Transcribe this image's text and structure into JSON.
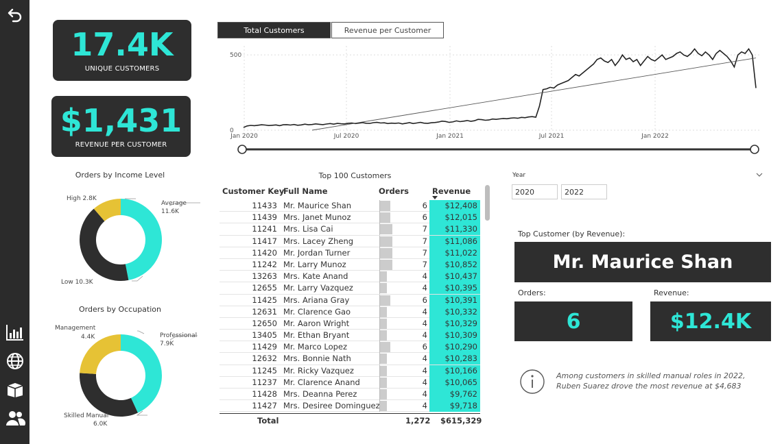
{
  "nav": {
    "icons": [
      "back-arrow-icon",
      "bar-chart-icon",
      "globe-icon",
      "box-icon",
      "users-icon"
    ]
  },
  "kpis": {
    "unique_customers": {
      "value": "17.4K",
      "label": "UNIQUE CUSTOMERS"
    },
    "revenue_per_customer": {
      "value": "$1,431",
      "label": "REVENUE PER CUSTOMER"
    }
  },
  "tabs": {
    "total_customers": "Total Customers",
    "revenue_per_customer": "Revenue per Customer"
  },
  "income_chart": {
    "title": "Orders by Income Level",
    "labels": {
      "average": "Average",
      "average_value": "11.6K",
      "high": "High 2.8K",
      "low": "Low 10.3K"
    }
  },
  "occupation_chart": {
    "title": "Orders by Occupation",
    "labels": {
      "professional": "Professional",
      "professional_value": "7.9K",
      "management": "Management",
      "management_value": "4.4K",
      "skilled": "Skilled Manual",
      "skilled_value": "6.0K"
    }
  },
  "chart_data": [
    {
      "type": "line",
      "x_ticks": [
        "Jan 2020",
        "Jul 2020",
        "Jan 2021",
        "Jul 2021",
        "Jan 2022"
      ],
      "y_ticks": [
        "0",
        "500"
      ],
      "ylim": [
        0,
        560
      ],
      "grid": true,
      "series": [
        {
          "values": [
            18,
            28,
            32,
            30,
            33,
            36,
            34,
            31,
            33,
            35,
            30,
            36,
            37,
            34,
            38,
            33,
            35,
            40,
            36,
            38,
            42,
            39,
            37,
            41,
            44,
            40,
            45,
            43,
            42,
            46,
            48,
            44,
            47,
            50,
            46,
            45,
            50,
            52,
            48,
            49,
            44,
            47,
            45,
            48,
            42,
            46,
            50,
            44,
            48,
            52,
            47,
            45,
            49,
            51,
            54,
            60,
            58,
            52,
            55,
            62,
            57,
            60,
            64,
            59,
            63,
            72,
            70,
            66,
            68,
            74,
            72,
            75,
            78,
            76,
            80,
            82,
            79,
            85,
            83,
            88,
            90,
            86,
            160,
            270,
            275,
            285,
            280,
            300,
            310,
            320,
            330,
            350,
            370,
            360,
            380,
            400,
            420,
            440,
            470,
            480,
            460,
            450,
            470,
            430,
            460,
            500,
            470,
            480,
            455,
            470,
            430,
            460,
            490,
            470,
            460,
            480,
            500,
            470,
            480,
            490,
            510,
            520,
            500,
            490,
            510,
            540,
            510,
            495,
            520,
            500,
            470,
            510,
            530,
            510,
            490,
            460,
            420,
            500,
            520,
            510,
            540,
            500,
            280
          ],
          "trend": [
            [
              0,
              -60
            ],
            [
              1,
              480
            ]
          ]
        }
      ]
    },
    {
      "type": "pie",
      "title": "Orders by Income Level",
      "categories": [
        "Average",
        "Low",
        "High"
      ],
      "values": [
        11.6,
        10.3,
        2.8
      ]
    },
    {
      "type": "pie",
      "title": "Orders by Occupation",
      "categories": [
        "Professional",
        "Skilled Manual",
        "Management"
      ],
      "values": [
        7.9,
        6.0,
        4.4
      ]
    }
  ],
  "table": {
    "title": "Top 100 Customers",
    "headers": {
      "key": "Customer Key",
      "name": "Full Name",
      "orders": "Orders",
      "revenue": "Revenue"
    },
    "rows": [
      {
        "key": "11433",
        "name": "Mr. Maurice Shan",
        "orders": 6,
        "revenue": "$12,408"
      },
      {
        "key": "11439",
        "name": "Mrs. Janet Munoz",
        "orders": 6,
        "revenue": "$12,015"
      },
      {
        "key": "11241",
        "name": "Mrs. Lisa Cai",
        "orders": 7,
        "revenue": "$11,330"
      },
      {
        "key": "11417",
        "name": "Mrs. Lacey Zheng",
        "orders": 7,
        "revenue": "$11,086"
      },
      {
        "key": "11420",
        "name": "Mr. Jordan Turner",
        "orders": 7,
        "revenue": "$11,022"
      },
      {
        "key": "11242",
        "name": "Mr. Larry Munoz",
        "orders": 7,
        "revenue": "$10,852"
      },
      {
        "key": "13263",
        "name": "Mrs. Kate Anand",
        "orders": 4,
        "revenue": "$10,437"
      },
      {
        "key": "12655",
        "name": "Mr. Larry Vazquez",
        "orders": 4,
        "revenue": "$10,395"
      },
      {
        "key": "11425",
        "name": "Mrs. Ariana Gray",
        "orders": 6,
        "revenue": "$10,391"
      },
      {
        "key": "12631",
        "name": "Mr. Clarence Gao",
        "orders": 4,
        "revenue": "$10,332"
      },
      {
        "key": "12650",
        "name": "Mr. Aaron Wright",
        "orders": 4,
        "revenue": "$10,329"
      },
      {
        "key": "13405",
        "name": "Mr. Ethan Bryant",
        "orders": 4,
        "revenue": "$10,309"
      },
      {
        "key": "11429",
        "name": "Mr. Marco Lopez",
        "orders": 6,
        "revenue": "$10,290"
      },
      {
        "key": "12632",
        "name": "Mrs. Bonnie Nath",
        "orders": 4,
        "revenue": "$10,283"
      },
      {
        "key": "11245",
        "name": "Mr. Ricky Vazquez",
        "orders": 4,
        "revenue": "$10,166"
      },
      {
        "key": "11237",
        "name": "Mr. Clarence Anand",
        "orders": 4,
        "revenue": "$10,065"
      },
      {
        "key": "11428",
        "name": "Mrs. Deanna Perez",
        "orders": 4,
        "revenue": "$9,762"
      },
      {
        "key": "11427",
        "name": "Mrs. Desiree Dominguez",
        "orders": 4,
        "revenue": "$9,718"
      }
    ],
    "total": {
      "label": "Total",
      "orders": "1,272",
      "revenue": "$615,329"
    }
  },
  "year_slicer": {
    "label": "Year",
    "from": "2020",
    "to": "2022"
  },
  "top_customer": {
    "label": "Top Customer (by Revenue):",
    "name": "Mr. Maurice Shan",
    "orders_label": "Orders:",
    "orders_value": "6",
    "revenue_label": "Revenue:",
    "revenue_value": "$12.4K"
  },
  "insight": {
    "text": "Among customers in skilled manual roles in 2022, Ruben Suarez drove the most revenue at $4,683"
  },
  "colors": {
    "accent": "#2ee6d6",
    "dark": "#2e2e2e",
    "gold": "#e6c235",
    "bar": "#cccccc"
  }
}
